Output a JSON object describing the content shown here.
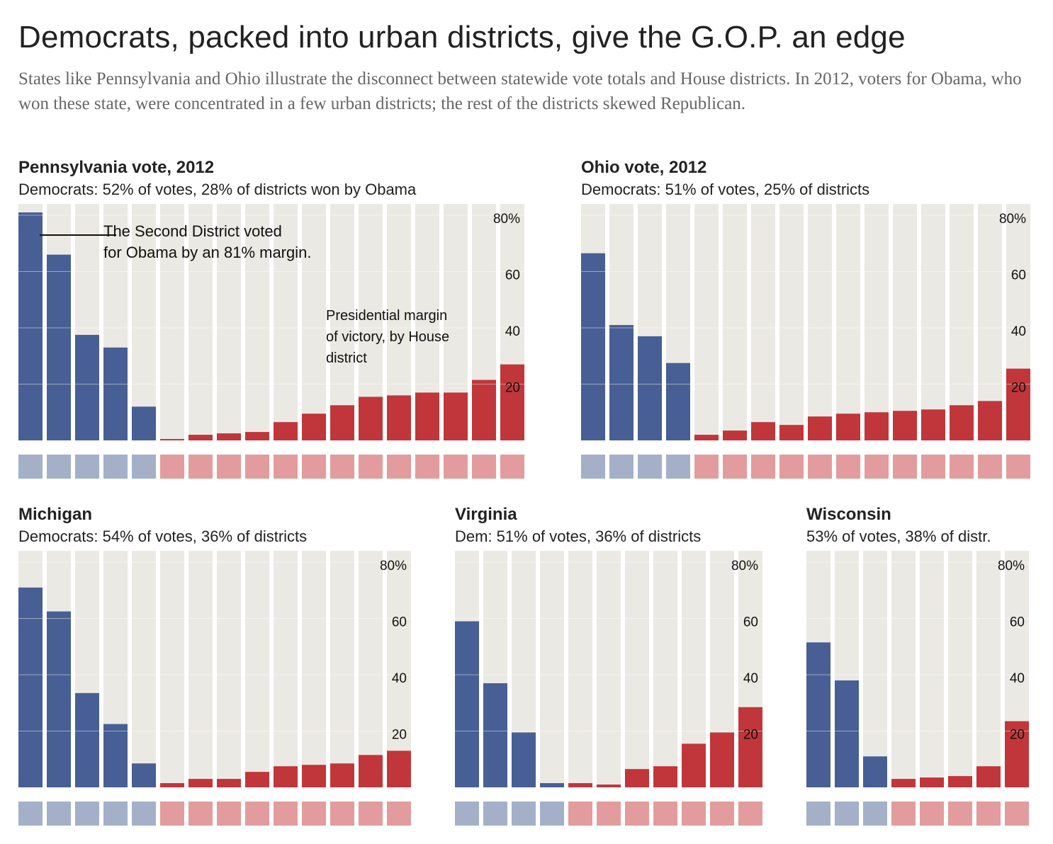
{
  "title": "Democrats, packed into urban districts, give the G.O.P. an edge",
  "subtitle": "States like Pennsylvania and Ohio illustrate the disconnect between statewide vote totals and House districts. In 2012, voters for Obama, who won these state, were concentrated in a few urban districts; the rest of the districts skewed Republican.",
  "colors": {
    "dem": "#475f95",
    "rep": "#c0363a",
    "dem_light": "#a3b0c8",
    "rep_light": "#e29c9d",
    "column_bg": "#ebe9e3",
    "grid": "#ffffff"
  },
  "annotations": {
    "second_district": [
      "The Second District voted",
      "for Obama by an 81% margin."
    ],
    "presidential": [
      "Presidential margin",
      "of victory, by House",
      "district"
    ]
  },
  "chart_data": [
    {
      "type": "bar",
      "title": "Pennsylvania vote, 2012",
      "subtitle": "Democrats: 52% of votes, 28% of districts won by Obama",
      "ylim": [
        0,
        80
      ],
      "yticks": [
        20,
        40,
        60,
        80
      ],
      "ytick_labels": [
        "20",
        "40",
        "60",
        "80%"
      ],
      "grid": true,
      "series": [
        {
          "values": [
            81,
            66,
            37.5,
            33,
            12,
            0.5,
            2,
            2.5,
            3,
            6.5,
            9.5,
            12.5,
            15.5,
            16,
            17,
            17,
            21.5,
            27
          ],
          "party": [
            "D",
            "D",
            "D",
            "D",
            "D",
            "R",
            "R",
            "R",
            "R",
            "R",
            "R",
            "R",
            "R",
            "R",
            "R",
            "R",
            "R",
            "R"
          ]
        }
      ]
    },
    {
      "type": "bar",
      "title": "Ohio vote, 2012",
      "subtitle": "Democrats: 51% of votes, 25% of districts",
      "ylim": [
        0,
        80
      ],
      "yticks": [
        20,
        40,
        60,
        80
      ],
      "ytick_labels": [
        "20",
        "40",
        "60",
        "80%"
      ],
      "grid": true,
      "series": [
        {
          "values": [
            66.5,
            41,
            37,
            27.5,
            2,
            3.5,
            6.5,
            5.5,
            8.5,
            9.5,
            10,
            10.5,
            11,
            12.5,
            14,
            25.5
          ],
          "party": [
            "D",
            "D",
            "D",
            "D",
            "R",
            "R",
            "R",
            "R",
            "R",
            "R",
            "R",
            "R",
            "R",
            "R",
            "R",
            "R"
          ]
        }
      ]
    },
    {
      "type": "bar",
      "title": "Michigan",
      "subtitle": "Democrats: 54% of votes, 36% of districts",
      "ylim": [
        0,
        80
      ],
      "yticks": [
        20,
        40,
        60,
        80
      ],
      "ytick_labels": [
        "20",
        "40",
        "60",
        "80%"
      ],
      "grid": true,
      "series": [
        {
          "values": [
            71,
            62.5,
            33.5,
            22.5,
            8.5,
            1.5,
            3,
            3,
            5.5,
            7.5,
            8,
            8.5,
            11.5,
            13
          ],
          "party": [
            "D",
            "D",
            "D",
            "D",
            "D",
            "R",
            "R",
            "R",
            "R",
            "R",
            "R",
            "R",
            "R",
            "R"
          ]
        }
      ]
    },
    {
      "type": "bar",
      "title": "Virginia",
      "subtitle": "Dem: 51% of votes, 36% of districts",
      "ylim": [
        0,
        80
      ],
      "yticks": [
        20,
        40,
        60,
        80
      ],
      "ytick_labels": [
        "20",
        "40",
        "60",
        "80%"
      ],
      "grid": true,
      "series": [
        {
          "values": [
            59,
            37,
            19.5,
            1.5,
            1.5,
            1,
            6.5,
            7.5,
            15.5,
            19.5,
            28.5
          ],
          "party": [
            "D",
            "D",
            "D",
            "D",
            "R",
            "R",
            "R",
            "R",
            "R",
            "R",
            "R"
          ]
        }
      ]
    },
    {
      "type": "bar",
      "title": "Wisconsin",
      "subtitle": "53% of votes, 38% of distr.",
      "ylim": [
        0,
        80
      ],
      "yticks": [
        20,
        40,
        60,
        80
      ],
      "ytick_labels": [
        "20",
        "40",
        "60",
        "80%"
      ],
      "grid": true,
      "series": [
        {
          "values": [
            51.5,
            38,
            11,
            3,
            3.5,
            4,
            7.5,
            23.5
          ],
          "party": [
            "D",
            "D",
            "D",
            "R",
            "R",
            "R",
            "R",
            "R"
          ]
        }
      ]
    }
  ]
}
